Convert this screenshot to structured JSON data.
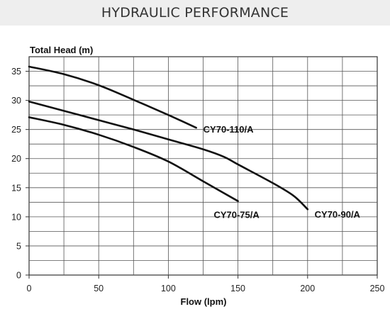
{
  "header": {
    "title": "HYDRAULIC PERFORMANCE"
  },
  "chart_data": {
    "type": "line",
    "title": "HYDRAULIC PERFORMANCE",
    "xlabel": "Flow (lpm)",
    "ylabel": "Total Head (m)",
    "xlim": [
      0,
      250
    ],
    "ylim": [
      0,
      37.5
    ],
    "xticks": [
      0,
      50,
      100,
      150,
      200,
      250
    ],
    "yticks": [
      0,
      5,
      10,
      15,
      20,
      25,
      30,
      35
    ],
    "grid": true,
    "legend": "none",
    "series": [
      {
        "name": "CY70-110/A",
        "x": [
          0,
          25,
          50,
          75,
          100,
          120
        ],
        "y": [
          35.8,
          34.5,
          32.6,
          30.1,
          27.5,
          25.3
        ]
      },
      {
        "name": "CY70-90/A",
        "x": [
          0,
          25,
          50,
          75,
          100,
          125,
          140,
          150,
          175,
          190,
          200
        ],
        "y": [
          29.8,
          28.2,
          26.6,
          25.0,
          23.3,
          21.6,
          20.3,
          19.0,
          15.8,
          13.6,
          11.3
        ]
      },
      {
        "name": "CY70-75/A",
        "x": [
          0,
          25,
          50,
          75,
          100,
          125,
          150
        ],
        "y": [
          27.1,
          25.8,
          24.1,
          22.0,
          19.5,
          16.1,
          12.7
        ]
      }
    ],
    "line_color": "#111111"
  }
}
